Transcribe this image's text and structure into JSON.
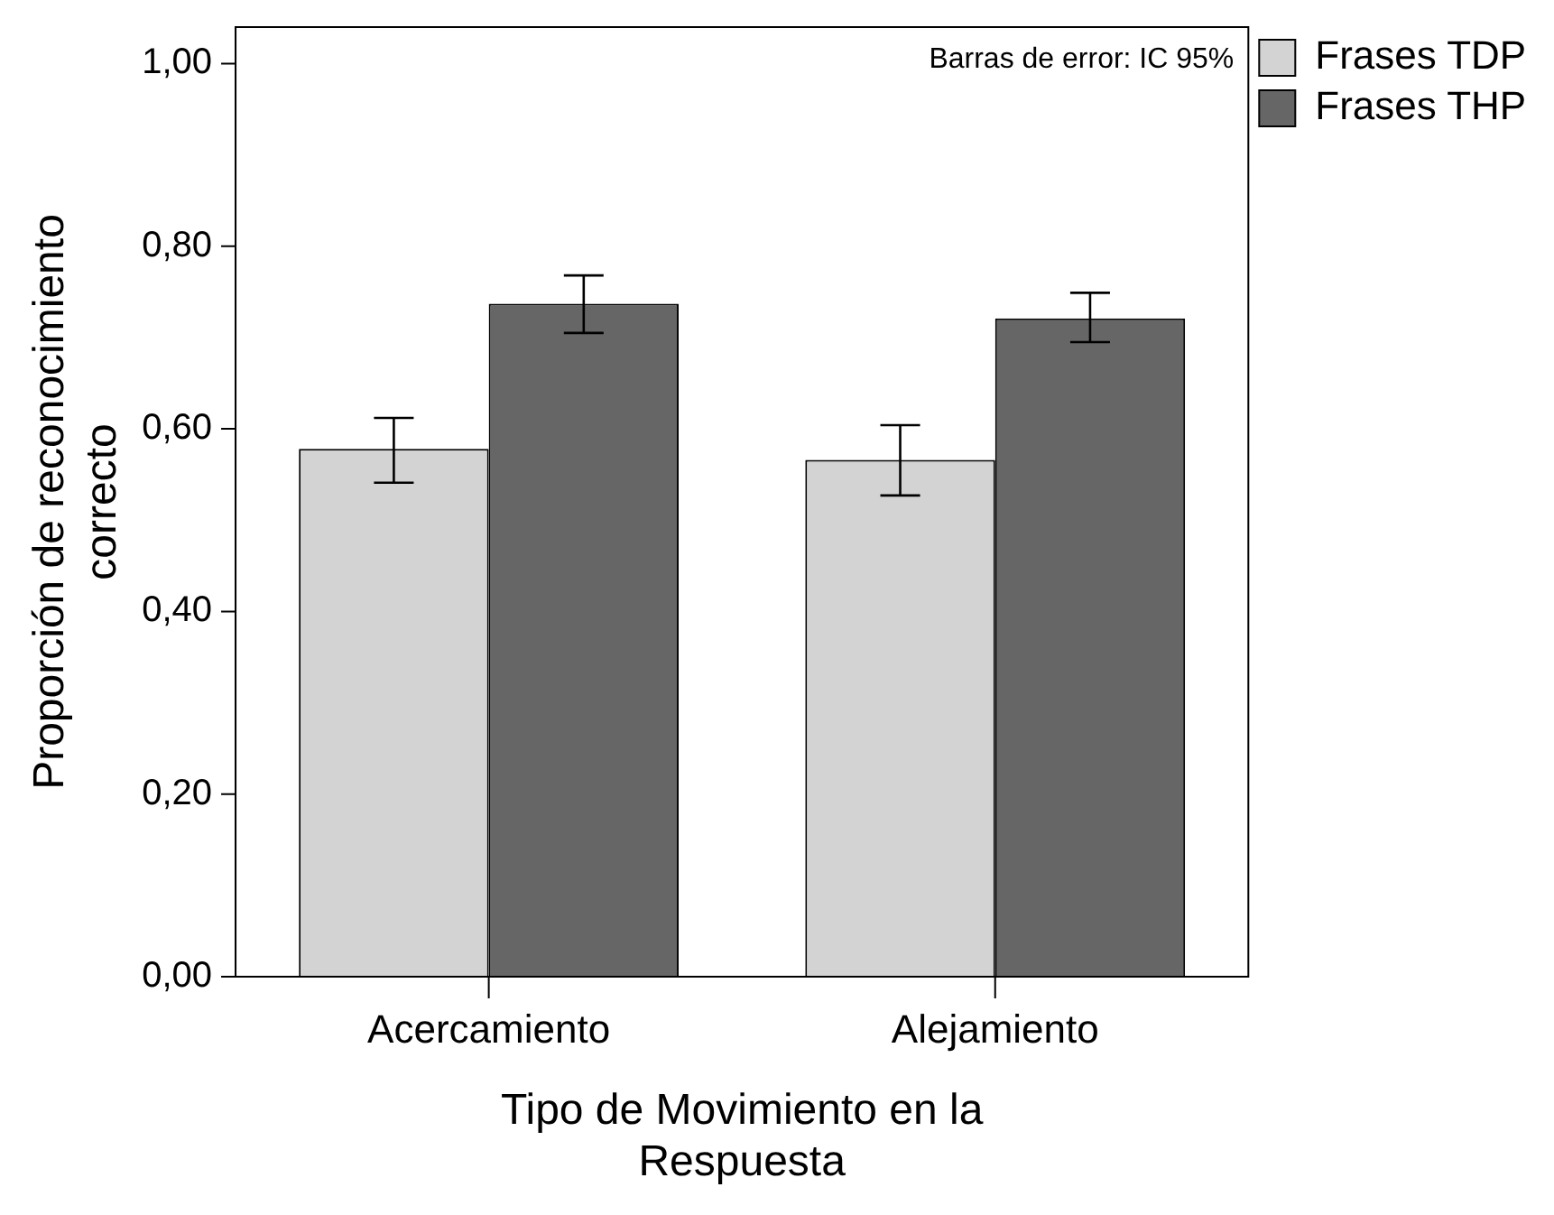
{
  "chart_data": {
    "type": "bar",
    "xlabel": "Tipo de Movimiento en la Respuesta",
    "ylabel": "Proporción de reconocimiento correcto",
    "categories": [
      "Acercamiento",
      "Alejamiento"
    ],
    "series": [
      {
        "name": "Frases TDP",
        "color": "#d3d3d3",
        "values": [
          0.578,
          0.566
        ],
        "errors": [
          [
            0.541,
            0.612
          ],
          [
            0.527,
            0.604
          ]
        ]
      },
      {
        "name": "Frases THP",
        "color": "#666666",
        "values": [
          0.737,
          0.721
        ],
        "errors": [
          [
            0.705,
            0.768
          ],
          [
            0.695,
            0.749
          ]
        ]
      }
    ],
    "ylim": [
      0,
      1.04
    ],
    "yticks": [
      {
        "value": 0,
        "label": "0,00"
      },
      {
        "value": 0.2,
        "label": "0,20"
      },
      {
        "value": 0.4,
        "label": "0,40"
      },
      {
        "value": 0.6,
        "label": "0,60"
      },
      {
        "value": 0.8,
        "label": "0,80"
      },
      {
        "value": 1,
        "label": "1,00"
      }
    ],
    "annotations": [
      "Barras de error: IC 95%"
    ],
    "grid": false,
    "legend": "top right"
  }
}
